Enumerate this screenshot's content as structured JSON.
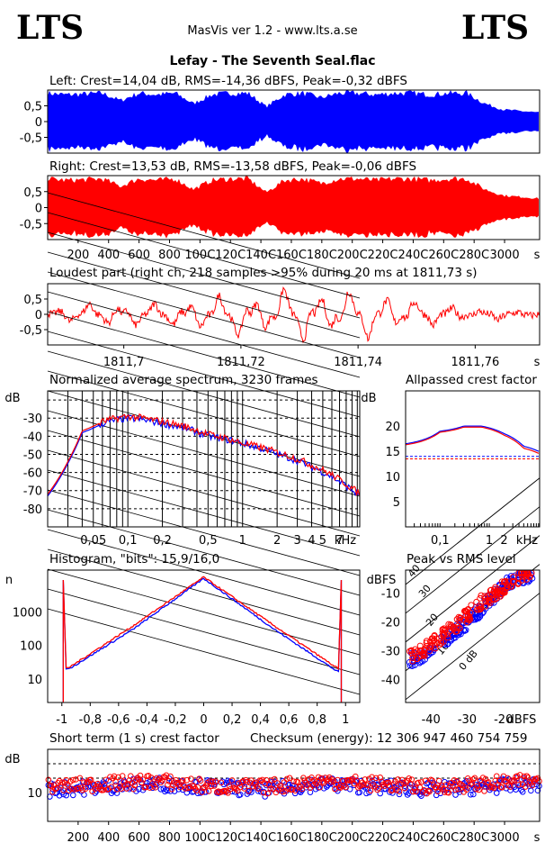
{
  "header": {
    "logo_left": "LTS",
    "logo_right": "LTS",
    "app_title": "MasVis ver 1.2 - www.lts.a.se",
    "file_name": "Lefay - The Seventh Seal.flac"
  },
  "colors": {
    "left": "#0000ff",
    "right": "#ff0000"
  },
  "chart_data": [
    {
      "type": "area",
      "title": "Left: Crest=14,04 dB, RMS=-14,36 dBFS, Peak=-0,32 dBFS",
      "yticks": [
        "0,5",
        "0",
        "-0,5"
      ],
      "ylim": [
        -1,
        1
      ],
      "xlim": [
        0,
        3230
      ],
      "series": [
        {
          "values": [
            0.95,
            0.9,
            0.92,
            0.95,
            0.7,
            0.95,
            0.9,
            0.95,
            0.6,
            0.9,
            0.95,
            0.95,
            0.5,
            0.9,
            0.95,
            0.8,
            0.95,
            0.95,
            0.9,
            0.95,
            0.95,
            0.9,
            0.95,
            0.95,
            0.6,
            0.4,
            0.35,
            0.3
          ]
        }
      ]
    },
    {
      "type": "area",
      "title": "Right: Crest=13,53 dB, RMS=-13,58 dBFS, Peak=-0,06 dBFS",
      "yticks": [
        "0,5",
        "0",
        "-0,5"
      ],
      "ylim": [
        -1,
        1
      ],
      "xlim": [
        0,
        3230
      ],
      "xticks": [
        "200",
        "400",
        "600",
        "800",
        "1000",
        "1200",
        "1400",
        "1600",
        "1800",
        "2000",
        "2200",
        "2400",
        "2600",
        "2800",
        "3000"
      ],
      "xticklabels": [
        "200",
        "400",
        "600",
        "800",
        "100C",
        "120C",
        "140C",
        "160C",
        "180C",
        "200C",
        "220C",
        "240C",
        "260C",
        "280C",
        "3000"
      ],
      "xunit": "s",
      "series": [
        {
          "values": [
            0.95,
            0.9,
            0.92,
            0.95,
            0.7,
            0.95,
            0.9,
            0.95,
            0.6,
            0.9,
            0.95,
            0.95,
            0.5,
            0.9,
            0.95,
            0.8,
            0.95,
            0.95,
            0.9,
            0.95,
            0.95,
            0.9,
            0.95,
            0.95,
            0.6,
            0.4,
            0.35,
            0.3
          ]
        }
      ]
    },
    {
      "type": "line",
      "title": "Loudest part (right ch, 218 samples >95% during 20 ms at 1811,73 s)",
      "yticks": [
        "0,5",
        "0",
        "-0,5"
      ],
      "ylim": [
        -1,
        1
      ],
      "xlim": [
        1811.687,
        1811.771
      ],
      "xticks": [
        "1811,7",
        "1811,72",
        "1811,74",
        "1811,76"
      ],
      "xunit": "s",
      "series": [
        {
          "values": [
            0.1,
            -0.3,
            0.4,
            -0.5,
            0.5,
            -0.4,
            0.5,
            -0.7,
            0.7,
            -0.9,
            0.9,
            -1.0,
            1.0,
            -1.0,
            1.0,
            -0.9,
            0.8,
            -0.6,
            0.4,
            -0.3,
            0.2,
            -0.2,
            0.1,
            0.0
          ]
        }
      ]
    },
    {
      "type": "line",
      "title": "Normalized average spectrum, 3230 frames",
      "ylabel": "dB",
      "yticks": [
        "-30",
        "-40",
        "-50",
        "-60",
        "-70",
        "-80"
      ],
      "ylim": [
        -90,
        -15
      ],
      "xscale": "log",
      "xticks": [
        "0,05",
        "0,1",
        "0,2",
        "0,5",
        "1",
        "2",
        "3",
        "4",
        "5",
        "7"
      ],
      "xunit": "kHz",
      "series": [
        {
          "values": [
            [
              0.02,
              -73
            ],
            [
              0.03,
              -55
            ],
            [
              0.04,
              -38
            ],
            [
              0.06,
              -33
            ],
            [
              0.08,
              -31
            ],
            [
              0.1,
              -30
            ],
            [
              0.2,
              -33
            ],
            [
              0.5,
              -40
            ],
            [
              1,
              -44
            ],
            [
              2,
              -50
            ],
            [
              4,
              -57
            ],
            [
              7,
              -65
            ],
            [
              10,
              -72
            ]
          ]
        },
        {
          "values": [
            [
              0.02,
              -72
            ],
            [
              0.03,
              -54
            ],
            [
              0.04,
              -37
            ],
            [
              0.06,
              -32
            ],
            [
              0.08,
              -30
            ],
            [
              0.1,
              -29
            ],
            [
              0.2,
              -32
            ],
            [
              0.5,
              -39
            ],
            [
              1,
              -44
            ],
            [
              2,
              -49
            ],
            [
              4,
              -56
            ],
            [
              7,
              -64
            ],
            [
              10,
              -71
            ]
          ]
        }
      ]
    },
    {
      "type": "line",
      "title": "Allpassed crest factor",
      "ylabel": "dB",
      "yticks": [
        "20",
        "15",
        "10",
        "5"
      ],
      "ylim": [
        0,
        27
      ],
      "xscale": "log",
      "xticks": [
        "0,1",
        "1",
        "2"
      ],
      "xunit": "kHz",
      "reference_levels": [
        14.0,
        13.5
      ],
      "series": [
        {
          "values": [
            [
              0.02,
              16.5
            ],
            [
              0.1,
              19
            ],
            [
              0.3,
              20
            ],
            [
              0.7,
              20
            ],
            [
              2,
              18.5
            ],
            [
              5,
              16
            ],
            [
              10,
              15
            ]
          ]
        },
        {
          "values": [
            [
              0.02,
              16.3
            ],
            [
              0.1,
              18.8
            ],
            [
              0.3,
              19.8
            ],
            [
              0.7,
              19.8
            ],
            [
              2,
              18.2
            ],
            [
              5,
              15.6
            ],
            [
              10,
              14.6
            ]
          ]
        }
      ]
    },
    {
      "type": "line",
      "title": "Histogram, \"bits\": 15,9/16,0",
      "ylabel": "n",
      "yscale": "log",
      "yticks": [
        "1000",
        "100",
        "10"
      ],
      "xlim": [
        -1.1,
        1.1
      ],
      "xticks": [
        "-1",
        "-0,8",
        "-0,6",
        "-0,4",
        "-0,2",
        "0",
        "0,2",
        "0,4",
        "0,6",
        "0,8",
        "1"
      ],
      "series": [
        {
          "values": [
            [
              -0.95,
              20
            ],
            [
              -0.5,
              300
            ],
            [
              0,
              10000
            ],
            [
              0.5,
              300
            ],
            [
              0.95,
              16
            ]
          ]
        },
        {
          "values": [
            [
              -0.95,
              22
            ],
            [
              -0.5,
              380
            ],
            [
              0,
              11000
            ],
            [
              0.5,
              380
            ],
            [
              0.95,
              20
            ]
          ]
        }
      ]
    },
    {
      "type": "scatter",
      "title": "Peak vs RMS level",
      "ylabel": "dBFS",
      "xunit": "dBFS",
      "yticks": [
        "-10",
        "-20",
        "-30",
        "-40"
      ],
      "xticks": [
        "-40",
        "-30",
        "-20"
      ],
      "xlim": [
        -47,
        -10
      ],
      "ylim": [
        -48,
        -2
      ],
      "diagonal_labels": [
        "40",
        "30",
        "20",
        "10",
        "0 dB"
      ],
      "series": [
        {
          "values": [
            [
              -45,
              -33
            ],
            [
              -40,
              -30
            ],
            [
              -35,
              -25
            ],
            [
              -30,
              -20
            ],
            [
              -25,
              -14
            ],
            [
              -22,
              -10
            ],
            [
              -18,
              -6
            ],
            [
              -15,
              -4
            ]
          ]
        },
        {
          "values": [
            [
              -46,
              -32
            ],
            [
              -41,
              -29
            ],
            [
              -36,
              -24
            ],
            [
              -31,
              -19
            ],
            [
              -26,
              -13
            ],
            [
              -21,
              -9
            ],
            [
              -17,
              -5
            ],
            [
              -14,
              -3
            ]
          ]
        }
      ]
    },
    {
      "type": "scatter",
      "title": "Short term (1 s) crest factor",
      "checksum_text": "Checksum (energy):  12 306 947 460 754 759",
      "ylabel": "dB",
      "yticks": [
        "10"
      ],
      "ylim": [
        0,
        25
      ],
      "xlim": [
        0,
        3230
      ],
      "xticks": [
        "200",
        "400",
        "600",
        "800",
        "1000",
        "1200",
        "1400",
        "1600",
        "1800",
        "2000",
        "2200",
        "2400",
        "2600",
        "2800",
        "3000"
      ],
      "xticklabels": [
        "200",
        "400",
        "600",
        "800",
        "100C",
        "120C",
        "140C",
        "160C",
        "180C",
        "200C",
        "220C",
        "240C",
        "260C",
        "280C",
        "3000"
      ],
      "xunit": "s",
      "reference_levels": [
        15,
        20
      ],
      "series": [
        {
          "values": [
            11,
            12,
            13,
            12,
            11,
            13,
            12,
            11,
            12,
            13
          ]
        },
        {
          "values": [
            12,
            13,
            14,
            12,
            12,
            14,
            13,
            12,
            13,
            14
          ]
        }
      ]
    }
  ]
}
